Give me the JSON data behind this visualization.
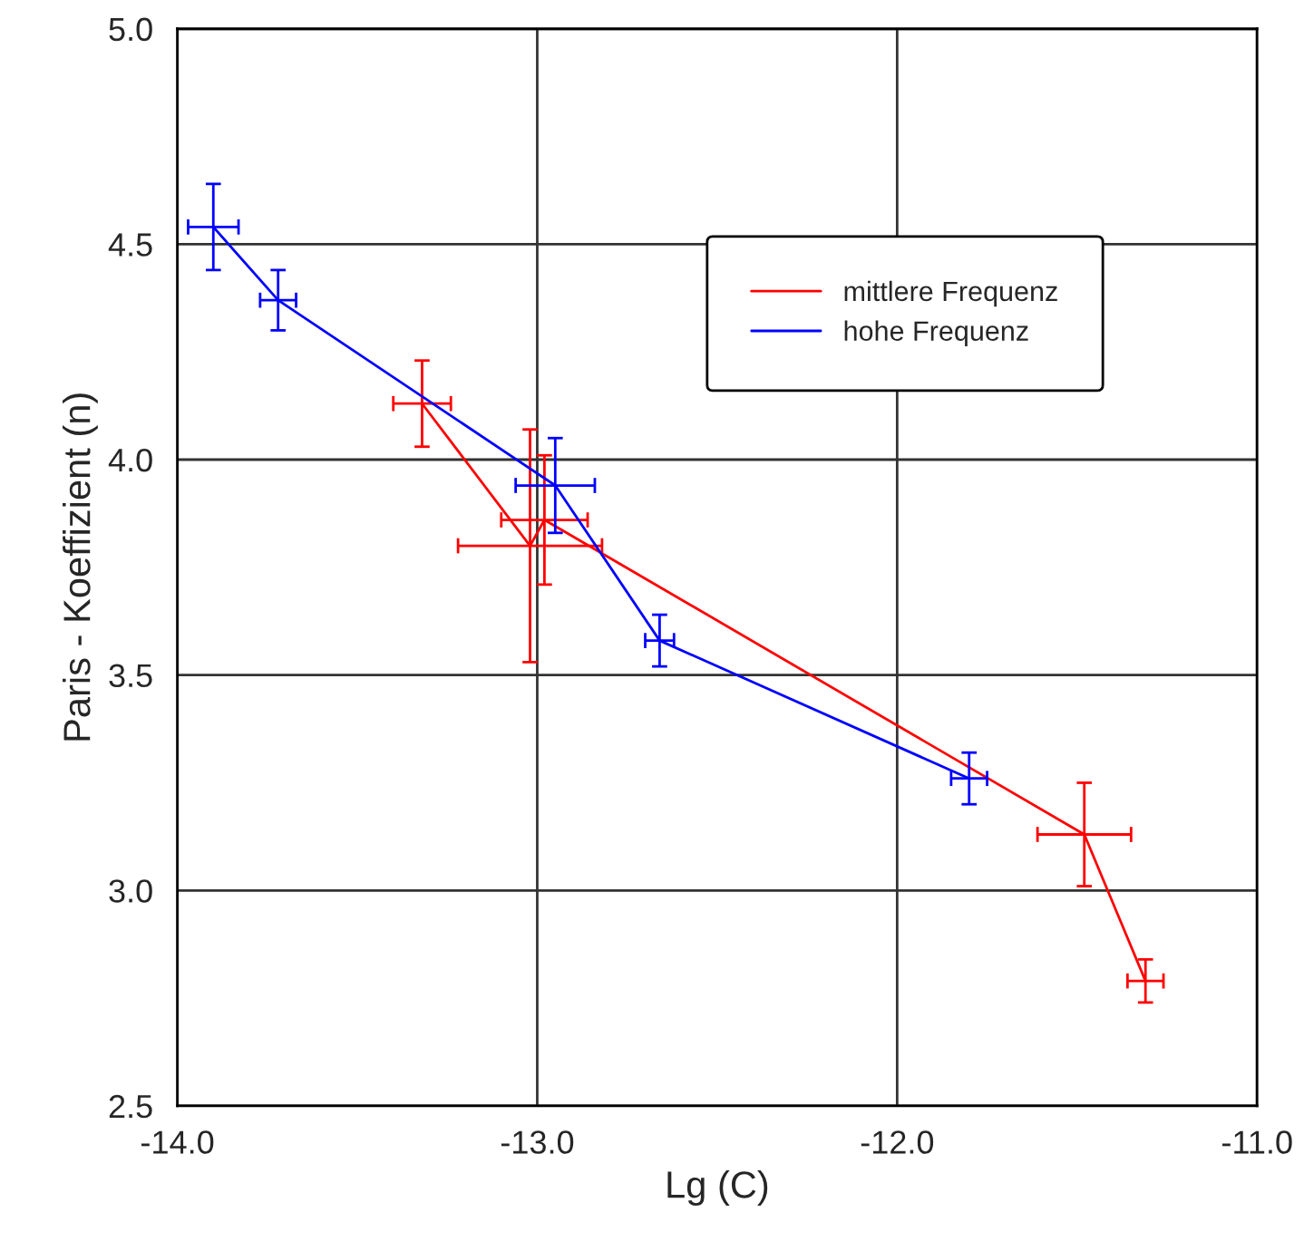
{
  "chart_data": {
    "type": "line",
    "xlabel": "Lg (C)",
    "ylabel": "Paris - Koeffizient (n)",
    "series": [
      {
        "name": "mittlere Frequenz",
        "color": "#ff0000",
        "x": [
          -13.32,
          -13.02,
          -12.98,
          -11.48,
          -11.31
        ],
        "values": [
          4.13,
          3.8,
          3.86,
          3.13,
          2.79
        ],
        "errors": [
          0.1,
          0.27,
          0.15,
          0.12,
          0.05
        ],
        "xerrors": [
          0.08,
          0.2,
          0.12,
          0.13,
          0.05
        ]
      },
      {
        "name": "hohe Frequenz",
        "color": "#0000ff",
        "x": [
          -13.9,
          -13.72,
          -12.95,
          -12.66,
          -11.8
        ],
        "values": [
          4.54,
          4.37,
          3.94,
          3.58,
          3.26
        ],
        "errors": [
          0.1,
          0.07,
          0.11,
          0.06,
          0.06
        ],
        "xerrors": [
          0.07,
          0.05,
          0.11,
          0.04,
          0.05
        ]
      }
    ],
    "xlim": [
      -14,
      -11
    ],
    "xticks": [
      {
        "value": -14,
        "label": "-14.0"
      },
      {
        "value": -13,
        "label": "-13.0"
      },
      {
        "value": -12,
        "label": "-12.0"
      },
      {
        "value": -11,
        "label": "-11.0"
      }
    ],
    "ylim": [
      2.5,
      5.0
    ],
    "yticks": [
      {
        "value": 2.5,
        "label": "2.5"
      },
      {
        "value": 3.0,
        "label": "3.0"
      },
      {
        "value": 3.5,
        "label": "3.5"
      },
      {
        "value": 4.0,
        "label": "4.0"
      },
      {
        "value": 4.5,
        "label": "4.5"
      },
      {
        "value": 5.0,
        "label": "5.0"
      }
    ],
    "grid": true,
    "legend": "top right",
    "marker": "none",
    "line_style": "solid"
  }
}
